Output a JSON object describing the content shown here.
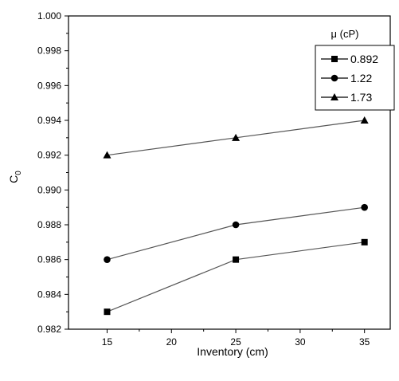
{
  "chart_data": {
    "type": "line",
    "title": "",
    "xlabel": "Inventory (cm)",
    "ylabel_main": "C",
    "ylabel_sub": "0",
    "x": [
      15,
      25,
      35
    ],
    "xlim": [
      12,
      37
    ],
    "ylim": [
      0.982,
      1.0
    ],
    "xticks": [
      "15",
      "20",
      "25",
      "30",
      "35"
    ],
    "yticks": [
      "0.982",
      "0.984",
      "0.986",
      "0.988",
      "0.990",
      "0.992",
      "0.994",
      "0.996",
      "0.998",
      "1.000"
    ],
    "legend_title": "μ (cP)",
    "legend_position": "top-right",
    "grid": false,
    "series": [
      {
        "name": "0.892",
        "marker": "square",
        "values": [
          0.983,
          0.986,
          0.987
        ]
      },
      {
        "name": "1.22",
        "marker": "circle",
        "values": [
          0.986,
          0.988,
          0.989
        ]
      },
      {
        "name": "1.73",
        "marker": "triangle",
        "values": [
          0.992,
          0.993,
          0.994
        ]
      }
    ],
    "colors": {
      "line": "#555555",
      "marker": "#000000",
      "axis": "#000000"
    }
  }
}
